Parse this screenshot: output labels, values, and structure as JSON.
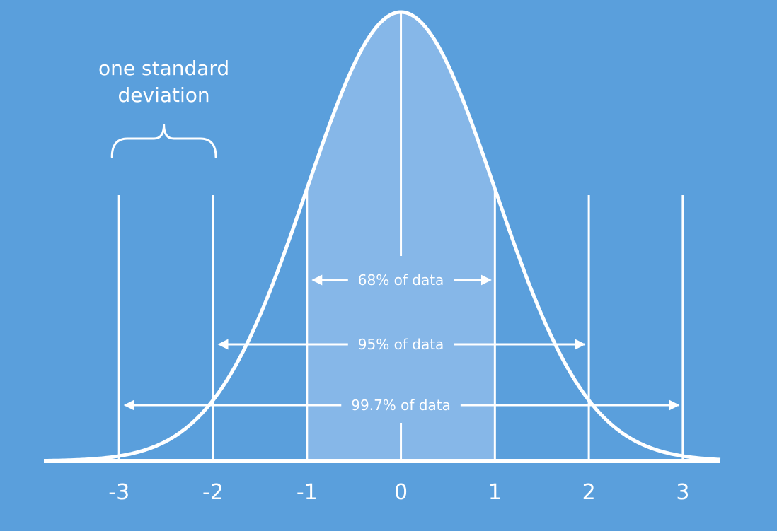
{
  "chart_data": {
    "type": "line",
    "x_ticks": [
      "-3",
      "-2",
      "-1",
      "0",
      "1",
      "2",
      "3"
    ],
    "tick_values": [
      -3,
      -2,
      -1,
      0,
      1,
      2,
      3
    ],
    "x_range": [
      -3.8,
      3.4
    ],
    "curve": "normal density, mean 0, standard deviation 1",
    "shaded_interval": [
      -1,
      1
    ],
    "vertical_lines_at": [
      -3,
      -2,
      -1,
      1,
      2,
      3
    ],
    "bands": [
      {
        "label": "68% of data",
        "from": -1,
        "to": 1
      },
      {
        "label": "95% of data",
        "from": -2,
        "to": 2
      },
      {
        "label": "99.7% of data",
        "from": -3,
        "to": 3
      }
    ],
    "annotation": {
      "lines": [
        "one standard",
        "deviation"
      ],
      "from": -3,
      "to": -2
    }
  },
  "colors": {
    "background": "#5a9fdc",
    "shade": "#86b7e8",
    "stroke": "#ffffff"
  }
}
